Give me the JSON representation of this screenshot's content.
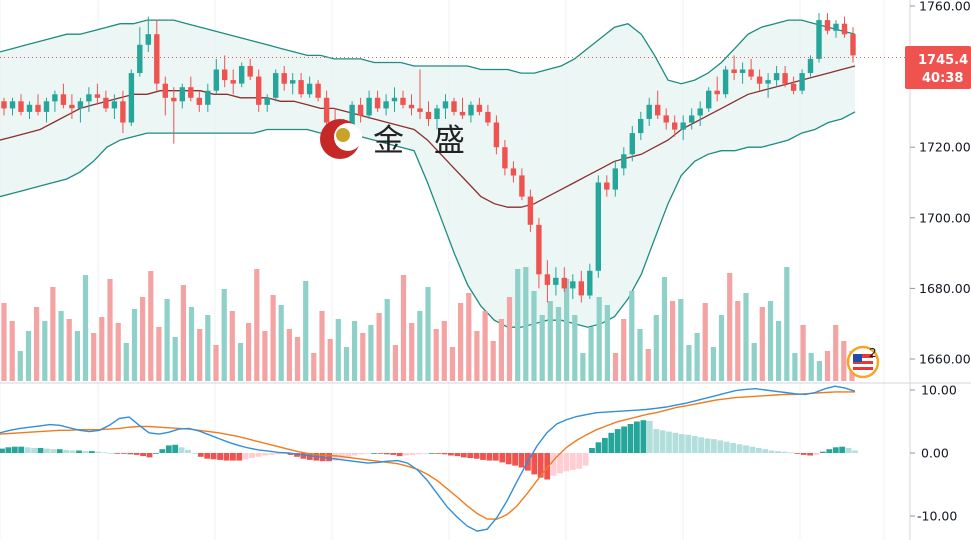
{
  "watermark": {
    "brand_text": "金 盛"
  },
  "price_badge": {
    "price": "1745.4",
    "countdown": "40:38",
    "color": "#ef5350"
  },
  "event_marker": {
    "count": "2",
    "icon": "us-flag-icon"
  },
  "colors": {
    "up": "#26a69a",
    "down": "#ef5350",
    "up_volume": "#8fd1c9",
    "down_volume": "#f4a3a3",
    "bollinger_band": "#1e8c80",
    "bollinger_mid": "#8b2f2f",
    "bollinger_fill": "#e6f4f2",
    "macd_line": "#2f8fdd",
    "signal_line": "#f07c1e",
    "hist_up_strong": "#26a69a",
    "hist_up_weak": "#b2dfdb",
    "hist_down_strong": "#ef5350",
    "hist_down_weak": "#ffcdd2"
  },
  "chart_data": [
    {
      "type": "candlestick",
      "title": "",
      "y_ticks": [
        "1760.00",
        "1740.00",
        "1720.00",
        "1700.00",
        "1680.00",
        "1660.00"
      ],
      "ylim": [
        1656,
        1762
      ],
      "y_tick_values": [
        1760,
        1740,
        1720,
        1700,
        1680,
        1660
      ],
      "grid": true,
      "current_price": 1745.4,
      "candles": [
        [
          1733,
          1734,
          1729,
          1731
        ],
        [
          1731,
          1734,
          1729,
          1733
        ],
        [
          1733,
          1735,
          1729,
          1730
        ],
        [
          1730,
          1733,
          1728,
          1732
        ],
        [
          1732,
          1735,
          1729,
          1730
        ],
        [
          1730,
          1734,
          1727,
          1733
        ],
        [
          1733,
          1736,
          1730,
          1735
        ],
        [
          1735,
          1738,
          1731,
          1732
        ],
        [
          1732,
          1735,
          1728,
          1731
        ],
        [
          1731,
          1734,
          1727,
          1733
        ],
        [
          1733,
          1737,
          1730,
          1735
        ],
        [
          1735,
          1738,
          1732,
          1734
        ],
        [
          1734,
          1736,
          1730,
          1731
        ],
        [
          1731,
          1735,
          1728,
          1733
        ],
        [
          1733,
          1736,
          1724,
          1727
        ],
        [
          1727,
          1742,
          1726,
          1741
        ],
        [
          1741,
          1754,
          1740,
          1749
        ],
        [
          1749,
          1757,
          1747,
          1752
        ],
        [
          1752,
          1756,
          1736,
          1738
        ],
        [
          1738,
          1740,
          1729,
          1734
        ],
        [
          1734,
          1737,
          1721,
          1733
        ],
        [
          1733,
          1738,
          1731,
          1737
        ],
        [
          1737,
          1740,
          1733,
          1734
        ],
        [
          1734,
          1736,
          1730,
          1732
        ],
        [
          1732,
          1738,
          1730,
          1736
        ],
        [
          1736,
          1745,
          1735,
          1742
        ],
        [
          1742,
          1746,
          1737,
          1739
        ],
        [
          1739,
          1742,
          1735,
          1738
        ],
        [
          1738,
          1744,
          1737,
          1743
        ],
        [
          1743,
          1745,
          1739,
          1740
        ],
        [
          1740,
          1742,
          1730,
          1732
        ],
        [
          1732,
          1735,
          1730,
          1734
        ],
        [
          1734,
          1742,
          1733,
          1741
        ],
        [
          1741,
          1743,
          1736,
          1738
        ],
        [
          1738,
          1741,
          1735,
          1739
        ],
        [
          1739,
          1741,
          1734,
          1735
        ],
        [
          1735,
          1740,
          1734,
          1738
        ],
        [
          1738,
          1739,
          1733,
          1734
        ],
        [
          1734,
          1736,
          1725,
          1727
        ],
        [
          1727,
          1731,
          1724,
          1726
        ],
        [
          1726,
          1728,
          1723,
          1724
        ],
        [
          1724,
          1733,
          1723,
          1732
        ],
        [
          1732,
          1734,
          1727,
          1729
        ],
        [
          1729,
          1736,
          1728,
          1734
        ],
        [
          1734,
          1736,
          1730,
          1731
        ],
        [
          1731,
          1735,
          1729,
          1733
        ],
        [
          1733,
          1737,
          1730,
          1734
        ],
        [
          1734,
          1736,
          1731,
          1732
        ],
        [
          1732,
          1735,
          1729,
          1731
        ],
        [
          1731,
          1742,
          1728,
          1730
        ],
        [
          1730,
          1733,
          1726,
          1728
        ],
        [
          1728,
          1732,
          1725,
          1731
        ],
        [
          1731,
          1735,
          1728,
          1733
        ],
        [
          1733,
          1734,
          1729,
          1730
        ],
        [
          1730,
          1734,
          1728,
          1729
        ],
        [
          1729,
          1733,
          1727,
          1732
        ],
        [
          1732,
          1734,
          1729,
          1730
        ],
        [
          1730,
          1732,
          1726,
          1727
        ],
        [
          1727,
          1729,
          1718,
          1720
        ],
        [
          1720,
          1722,
          1712,
          1714
        ],
        [
          1714,
          1716,
          1710,
          1712
        ],
        [
          1712,
          1714,
          1705,
          1706
        ],
        [
          1706,
          1708,
          1696,
          1698
        ],
        [
          1698,
          1700,
          1680,
          1684
        ],
        [
          1684,
          1688,
          1676,
          1681
        ],
        [
          1681,
          1686,
          1678,
          1683
        ],
        [
          1683,
          1686,
          1679,
          1680
        ],
        [
          1680,
          1684,
          1677,
          1682
        ],
        [
          1682,
          1685,
          1676,
          1678
        ],
        [
          1678,
          1687,
          1677,
          1685
        ],
        [
          1685,
          1712,
          1683,
          1710
        ],
        [
          1710,
          1712,
          1706,
          1708
        ],
        [
          1708,
          1716,
          1706,
          1714
        ],
        [
          1714,
          1720,
          1712,
          1718
        ],
        [
          1718,
          1726,
          1716,
          1724
        ],
        [
          1724,
          1730,
          1722,
          1728
        ],
        [
          1728,
          1734,
          1726,
          1732
        ],
        [
          1732,
          1736,
          1728,
          1729
        ],
        [
          1729,
          1731,
          1725,
          1727
        ],
        [
          1727,
          1729,
          1723,
          1725
        ],
        [
          1725,
          1729,
          1722,
          1727
        ],
        [
          1727,
          1731,
          1725,
          1729
        ],
        [
          1729,
          1733,
          1726,
          1731
        ],
        [
          1731,
          1737,
          1730,
          1736
        ],
        [
          1736,
          1740,
          1733,
          1735
        ],
        [
          1735,
          1743,
          1734,
          1742
        ],
        [
          1742,
          1746,
          1739,
          1741
        ],
        [
          1741,
          1744,
          1738,
          1742
        ],
        [
          1742,
          1745,
          1739,
          1740
        ],
        [
          1740,
          1742,
          1736,
          1738
        ],
        [
          1738,
          1741,
          1734,
          1739
        ],
        [
          1739,
          1743,
          1737,
          1741
        ],
        [
          1741,
          1743,
          1737,
          1738
        ],
        [
          1738,
          1740,
          1735,
          1736
        ],
        [
          1736,
          1742,
          1735,
          1741
        ],
        [
          1741,
          1746,
          1740,
          1745
        ],
        [
          1745,
          1758,
          1744,
          1756
        ],
        [
          1756,
          1758,
          1752,
          1753
        ],
        [
          1753,
          1756,
          1751,
          1755
        ],
        [
          1755,
          1757,
          1751,
          1752
        ],
        [
          1752,
          1754,
          1744,
          1746
        ]
      ],
      "bollinger_upper": [
        1747,
        1748,
        1749,
        1750,
        1751,
        1752,
        1752,
        1753,
        1754,
        1755,
        1755,
        1756,
        1756,
        1756,
        1755,
        1754,
        1753,
        1752,
        1751,
        1750,
        1749,
        1748,
        1747,
        1746,
        1746,
        1745,
        1745,
        1745,
        1744,
        1744,
        1744,
        1743,
        1743,
        1743,
        1743,
        1743,
        1742,
        1742,
        1742,
        1741,
        1741,
        1742,
        1743,
        1745,
        1748,
        1751,
        1754,
        1755,
        1752,
        1746,
        1739,
        1738,
        1739,
        1741,
        1744,
        1748,
        1752,
        1754,
        1755,
        1756,
        1756,
        1755,
        1754,
        1753,
        1752
      ],
      "bollinger_mid": [
        1722,
        1723,
        1724,
        1725,
        1727,
        1729,
        1731,
        1732,
        1733,
        1734,
        1735,
        1735,
        1736,
        1736,
        1736,
        1736,
        1735,
        1735,
        1734,
        1734,
        1734,
        1733,
        1733,
        1732,
        1731,
        1731,
        1730,
        1729,
        1728,
        1727,
        1726,
        1725,
        1722,
        1718,
        1714,
        1710,
        1706,
        1704,
        1703,
        1703,
        1704,
        1706,
        1708,
        1710,
        1712,
        1714,
        1716,
        1717,
        1718,
        1720,
        1722,
        1725,
        1727,
        1729,
        1731,
        1733,
        1735,
        1736,
        1737,
        1738,
        1739,
        1740,
        1741,
        1742,
        1743
      ],
      "bollinger_lower": [
        1706,
        1707,
        1708,
        1709,
        1710,
        1711,
        1713,
        1716,
        1720,
        1722,
        1723,
        1724,
        1724,
        1724,
        1724,
        1724,
        1724,
        1724,
        1724,
        1724,
        1725,
        1725,
        1725,
        1725,
        1724,
        1724,
        1723,
        1723,
        1722,
        1721,
        1720,
        1719,
        1710,
        1700,
        1690,
        1681,
        1675,
        1671,
        1669,
        1669,
        1670,
        1671,
        1671,
        1670,
        1669,
        1670,
        1672,
        1677,
        1684,
        1694,
        1704,
        1712,
        1716,
        1718,
        1719,
        1719,
        1720,
        1720,
        1721,
        1722,
        1724,
        1725,
        1727,
        1728,
        1730
      ]
    },
    {
      "type": "bar",
      "title": "",
      "volume": [
        39,
        30,
        15,
        25,
        37,
        30,
        47,
        35,
        31,
        25,
        53,
        24,
        32,
        51,
        29,
        19,
        36,
        42,
        55,
        27,
        41,
        22,
        48,
        37,
        26,
        33,
        18,
        46,
        35,
        19,
        29,
        56,
        25,
        43,
        38,
        26,
        22,
        50,
        14,
        35,
        21,
        31,
        17,
        30,
        24,
        28,
        34,
        41,
        18,
        53,
        29,
        35,
        47,
        26,
        30,
        17,
        39,
        44,
        25,
        35,
        20,
        31,
        42,
        56,
        57,
        45,
        33,
        40,
        37,
        51,
        33,
        14,
        27,
        42,
        38,
        14,
        31,
        45,
        26,
        16,
        33,
        52,
        40,
        41,
        18,
        24,
        39,
        17,
        33,
        54,
        40,
        44,
        19,
        37,
        40,
        30,
        57,
        14,
        28,
        14,
        10,
        15,
        28,
        20,
        15
      ],
      "volume_up": [
        false,
        false,
        true,
        true,
        false,
        true,
        false,
        true,
        false,
        true,
        true,
        false,
        false,
        false,
        false,
        true,
        true,
        false,
        false,
        false,
        true,
        true,
        false,
        true,
        false,
        true,
        false,
        true,
        false,
        true,
        false,
        false,
        false,
        false,
        true,
        false,
        false,
        true,
        false,
        false,
        false,
        true,
        true,
        true,
        false,
        true,
        false,
        true,
        false,
        false,
        false,
        true,
        true,
        false,
        false,
        false,
        false,
        false,
        false,
        false,
        false,
        false,
        false,
        true,
        true,
        true,
        true,
        true,
        true,
        true,
        true,
        true,
        true,
        true,
        true,
        false,
        false,
        true,
        true,
        false,
        true,
        true,
        false,
        true,
        true,
        true,
        false,
        true,
        true,
        false,
        false,
        true,
        true,
        false,
        true,
        true,
        true,
        true,
        false,
        true,
        true,
        false,
        false,
        false,
        false
      ]
    },
    {
      "type": "line",
      "title": "",
      "y_ticks": [
        "10.00",
        "0.00",
        "-10.00"
      ],
      "y_tick_values": [
        10,
        0,
        -10
      ],
      "ylim": [
        -13,
        10.8
      ],
      "grid": true,
      "macd": [
        3.2,
        3.6,
        3.9,
        4.1,
        4.3,
        4.5,
        4.4,
        4.0,
        3.6,
        3.4,
        3.6,
        4.4,
        5.5,
        5.7,
        4.4,
        3.2,
        3.0,
        3.3,
        3.8,
        3.9,
        3.5,
        2.9,
        2.3,
        1.7,
        1.2,
        0.8,
        0.5,
        0.3,
        0.1,
        0.0,
        -0.2,
        -0.4,
        -0.6,
        -0.8,
        -1.0,
        -1.2,
        -1.4,
        -1.6,
        -1.5,
        -1.3,
        -1.2,
        -1.6,
        -2.7,
        -4.4,
        -6.5,
        -8.6,
        -10.2,
        -11.6,
        -12.4,
        -12.1,
        -10.2,
        -7.6,
        -4.5,
        -1.6,
        1.1,
        3.2,
        4.6,
        5.3,
        5.8,
        6.1,
        6.4,
        6.5,
        6.6,
        6.7,
        6.8,
        6.9,
        7.1,
        7.3,
        7.6,
        7.9,
        8.3,
        8.7,
        9.1,
        9.5,
        9.9,
        10.1,
        10.2,
        10.0,
        9.8,
        9.6,
        9.4,
        9.3,
        9.6,
        10.2,
        10.6,
        10.3,
        9.8
      ],
      "signal": [
        3.0,
        3.1,
        3.2,
        3.3,
        3.4,
        3.5,
        3.6,
        3.6,
        3.7,
        3.7,
        3.7,
        3.8,
        3.9,
        4.1,
        4.2,
        4.2,
        4.1,
        4.0,
        3.9,
        3.8,
        3.6,
        3.4,
        3.2,
        2.9,
        2.6,
        2.2,
        1.8,
        1.4,
        1.0,
        0.6,
        0.2,
        -0.1,
        -0.3,
        -0.4,
        -0.5,
        -0.7,
        -0.9,
        -1.1,
        -1.3,
        -1.5,
        -1.7,
        -2.1,
        -2.6,
        -3.4,
        -4.4,
        -5.7,
        -7.0,
        -8.4,
        -9.6,
        -10.5,
        -10.5,
        -9.8,
        -8.4,
        -6.5,
        -4.4,
        -2.4,
        -0.6,
        0.9,
        2.0,
        2.9,
        3.7,
        4.3,
        4.9,
        5.3,
        5.7,
        6.1,
        6.4,
        6.8,
        7.2,
        7.5,
        7.8,
        8.1,
        8.4,
        8.6,
        8.8,
        8.9,
        9.0,
        9.1,
        9.2,
        9.3,
        9.3,
        9.4,
        9.5,
        9.6,
        9.7,
        9.7,
        9.7
      ],
      "histogram": [
        0.7,
        0.9,
        1.0,
        1.0,
        0.9,
        0.8,
        0.8,
        0.7,
        0.6,
        0.6,
        0.5,
        0.4,
        0.4,
        0.3,
        0.3,
        0.2,
        0.1,
        0.0,
        -0.1,
        -0.1,
        -0.2,
        -0.3,
        -0.5,
        -0.7,
        0.0,
        0.6,
        1.2,
        1.3,
        0.9,
        0.5,
        0.0,
        -0.6,
        -0.9,
        -1.0,
        -1.1,
        -1.2,
        -1.2,
        -1.2,
        -1.0,
        -0.8,
        -0.6,
        -0.4,
        -0.3,
        -0.2,
        -0.1,
        -0.3,
        -0.6,
        -0.9,
        -1.1,
        -1.2,
        -1.3,
        -1.3,
        -1.2,
        -0.9,
        -0.6,
        -0.4,
        -0.2,
        -0.1,
        0.0,
        -0.1,
        -0.2,
        -0.3,
        -0.5,
        -0.4,
        -0.3,
        -0.2,
        -0.1,
        0.0,
        -0.1,
        -0.2,
        -0.4,
        -0.5,
        -0.7,
        -0.8,
        -0.9,
        -1.1,
        -1.2,
        -1.2,
        -1.5,
        -1.8,
        -2.0,
        -2.3,
        -2.8,
        -3.4,
        -3.9,
        -4.2,
        -3.6,
        -3.2,
        -2.9,
        -2.7,
        -2.5,
        -2.0,
        0.8,
        1.7,
        2.4,
        3.2,
        3.8,
        4.2,
        4.6,
        5.0,
        5.2,
        5.1,
        3.8,
        3.6,
        3.4,
        3.2,
        3.0,
        2.9,
        2.7,
        2.5,
        2.3,
        2.2,
        2.0,
        1.8,
        1.6,
        1.4,
        1.2,
        1.0,
        0.8,
        0.6,
        0.4,
        0.3,
        0.2,
        0.1,
        -0.1,
        -0.3,
        -0.4,
        -0.3,
        0.2,
        0.6,
        0.9,
        1.0,
        0.8,
        0.4
      ]
    }
  ]
}
